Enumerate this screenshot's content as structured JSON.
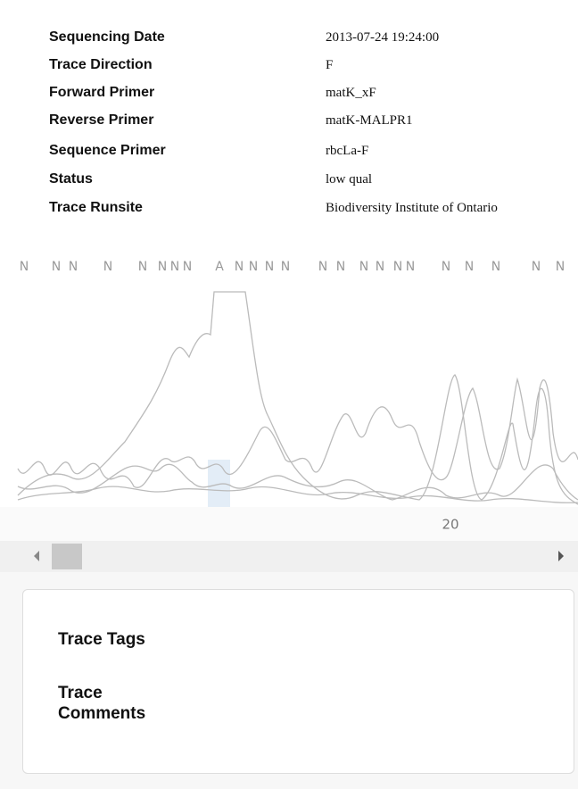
{
  "fields": [
    {
      "label": "Sequencing Date",
      "value": "2013-07-24 19:24:00"
    },
    {
      "label": "Trace Direction",
      "value": "F"
    },
    {
      "label": "Forward Primer",
      "value": "matK_xF"
    },
    {
      "label": "Reverse Primer",
      "value": "matK-MALPR1"
    },
    {
      "label": "Sequence Primer",
      "value": "rbcLa-F"
    },
    {
      "label": "Status",
      "value": "low qual"
    },
    {
      "label": "Trace Runsite",
      "value": "Biodiversity Institute of Ontario"
    }
  ],
  "trace": {
    "bases": [
      "N",
      "N",
      "N",
      "N",
      "N",
      "N",
      "N",
      "N",
      "A",
      "N",
      "N",
      "N",
      "N",
      "N",
      "N",
      "N",
      "N",
      "N",
      "N",
      "N",
      "N",
      "N",
      "N",
      "N"
    ],
    "position_label": "20"
  },
  "panel": {
    "tags_label": "Trace Tags",
    "comments_label": "Trace Comments"
  }
}
